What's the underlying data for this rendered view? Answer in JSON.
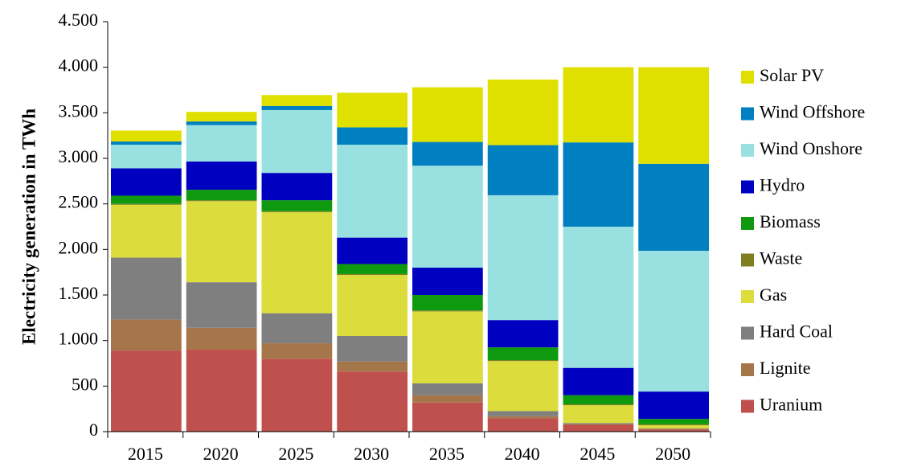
{
  "chart_data": {
    "type": "stacked-bar",
    "y_label": "Electricity generation in TWh",
    "categories": [
      "2015",
      "2020",
      "2025",
      "2030",
      "2035",
      "2040",
      "2045",
      "2050"
    ],
    "series": [
      {
        "name": "Uranium",
        "color": "#c0504d",
        "values": [
          890,
          900,
          800,
          660,
          320,
          145,
          75,
          25
        ]
      },
      {
        "name": "Lignite",
        "color": "#a6764b",
        "values": [
          340,
          240,
          170,
          110,
          80,
          25,
          10,
          5
        ]
      },
      {
        "name": "Hard Coal",
        "color": "#7f7f7f",
        "values": [
          680,
          500,
          330,
          280,
          130,
          55,
          10,
          5
        ]
      },
      {
        "name": "Gas",
        "color": "#dcdc3c",
        "values": [
          580,
          890,
          1110,
          670,
          790,
          550,
          195,
          35
        ]
      },
      {
        "name": "Waste",
        "color": "#7f7f20",
        "values": [
          10,
          10,
          10,
          10,
          10,
          10,
          10,
          10
        ]
      },
      {
        "name": "Biomass",
        "color": "#0f990f",
        "values": [
          90,
          115,
          120,
          110,
          170,
          140,
          100,
          60
        ]
      },
      {
        "name": "Hydro",
        "color": "#0000c0",
        "values": [
          300,
          310,
          300,
          290,
          300,
          300,
          300,
          300
        ]
      },
      {
        "name": "Wind Onshore",
        "color": "#99e0e0",
        "values": [
          260,
          400,
          690,
          1020,
          1120,
          1370,
          1550,
          1545
        ]
      },
      {
        "name": "Wind Offshore",
        "color": "#0080c0",
        "values": [
          35,
          40,
          45,
          190,
          260,
          550,
          925,
          955
        ]
      },
      {
        "name": "Solar PV",
        "color": "#e0e000",
        "values": [
          120,
          105,
          120,
          380,
          600,
          720,
          825,
          1060
        ]
      }
    ],
    "ylim": [
      0,
      4500
    ],
    "yticks": [
      0,
      500,
      {
        "value": 1000,
        "label": "1.000"
      },
      {
        "value": 1500,
        "label": "1.500"
      },
      {
        "value": 2000,
        "label": "2.000"
      },
      {
        "value": 2500,
        "label": "2.500"
      },
      {
        "value": 3000,
        "label": "3.000"
      },
      {
        "value": 3500,
        "label": "3.500"
      },
      {
        "value": 4000,
        "label": "4.000"
      },
      {
        "value": 4500,
        "label": "4.500"
      }
    ],
    "legend": "right"
  }
}
